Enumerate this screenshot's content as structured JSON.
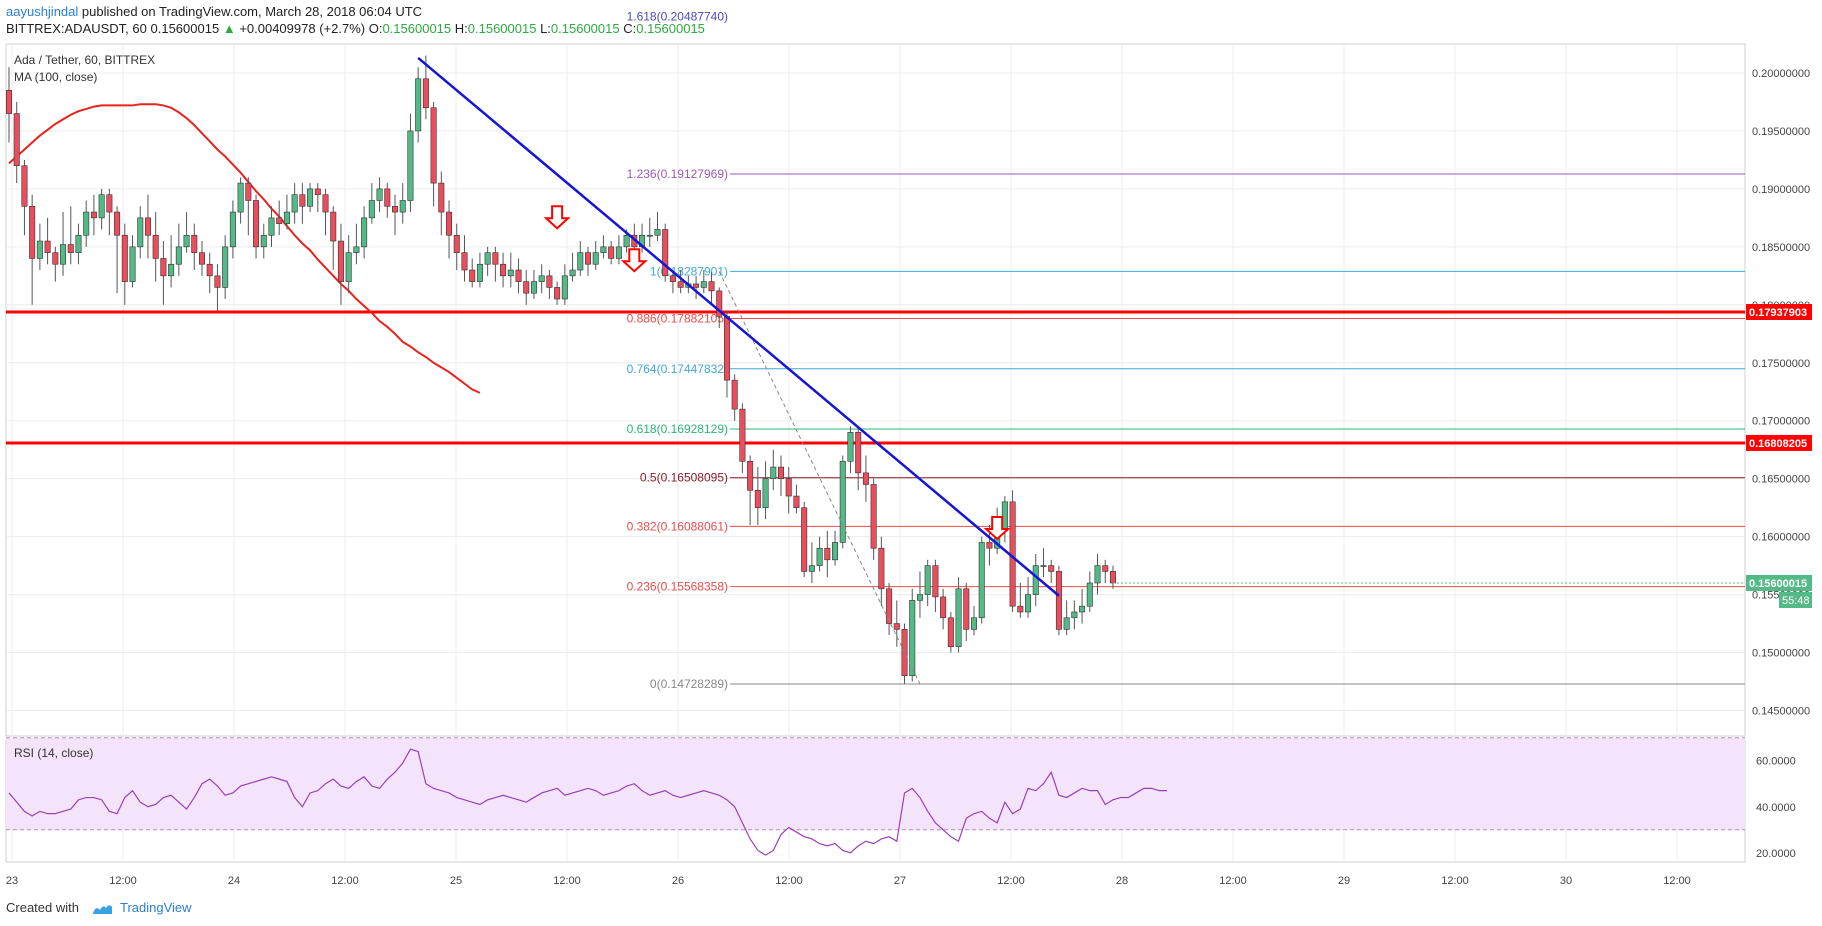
{
  "header": {
    "author": "aayushjindal",
    "published_text": "published on TradingView.com, March 28, 2018 06:04 UTC"
  },
  "ohlc": {
    "symbol": "BITTREX:ADAUSDT, 60",
    "price": "0.15600015",
    "change_arrow": "▲",
    "change": "+0.00409978 (+2.7%)",
    "o_label": "O:",
    "o": "0.15600015",
    "h_label": "H:",
    "h": "0.15600015",
    "l_label": "L:",
    "l": "0.15600015",
    "c_label": "C:",
    "c": "0.15600015"
  },
  "footer": {
    "created_with": "Created with",
    "brand": "TradingView"
  },
  "colors": {
    "up": "#53b987",
    "down": "#eb4d5c",
    "ma": "#e8231d",
    "trendline": "#1515d6",
    "resistance": "#ff0000",
    "rsi_line": "#9b3fb6",
    "rsi_band": "#f3e4fb",
    "grid": "#ececec",
    "last_price_bg": "#53b987"
  },
  "chart_data": {
    "type": "candlestick",
    "title": "Ada / Tether, 60, BITTREX",
    "indicator_label": "MA (100, close)",
    "rsi_label": "RSI (14, close)",
    "price_ticks": [
      "0.20000000",
      "0.19500000",
      "0.19000000",
      "0.18500000",
      "0.18000000",
      "0.17500000",
      "0.17000000",
      "0.16500000",
      "0.16000000",
      "0.15500000",
      "0.15000000",
      "0.14500000"
    ],
    "ylim": [
      0.1428,
      0.2025
    ],
    "rsi_ticks": [
      "60.0000",
      "40.0000",
      "20.0000"
    ],
    "rsi_lim": [
      16,
      69
    ],
    "rsi_band": [
      30,
      70
    ],
    "time_labels": [
      "23",
      "12:00",
      "24",
      "12:00",
      "25",
      "12:00",
      "26",
      "12:00",
      "27",
      "12:00",
      "28",
      "12:00",
      "29",
      "12:00",
      "30",
      "12:00"
    ],
    "last_price": "0.15600015",
    "countdown": "55:48",
    "horizontal_levels": [
      {
        "label": "0.17937903",
        "value": 0.17937903
      },
      {
        "label": "0.16808205",
        "value": 0.16808205
      }
    ],
    "fib_levels": [
      {
        "label": "1.618(0.20487740)",
        "value": 0.2048774,
        "color": "#4a4ab8"
      },
      {
        "label": "1.236(0.19127969)",
        "value": 0.19127969,
        "color": "#9b59b6"
      },
      {
        "label": "1(0.18287901)",
        "value": 0.18287901,
        "color": "#3fa9d6"
      },
      {
        "label": "0.886(0.17882105)",
        "value": 0.17882105,
        "color": "#e84c4c"
      },
      {
        "label": "0.764(0.17447832)",
        "value": 0.17447832,
        "color": "#3fa9d6"
      },
      {
        "label": "0.618(0.16928129)",
        "value": 0.16928129,
        "color": "#2bb673"
      },
      {
        "label": "0.5(0.16508095)",
        "value": 0.16508095,
        "color": "#8a1c2a"
      },
      {
        "label": "0.382(0.16088061)",
        "value": 0.16088061,
        "color": "#e84c4c"
      },
      {
        "label": "0.236(0.15568358)",
        "value": 0.15568358,
        "color": "#e84c4c"
      },
      {
        "label": "0(0.14728289)",
        "value": 0.14728289,
        "color": "#888888"
      }
    ],
    "candles": [
      [
        0.1985,
        0.1965,
        0.2005,
        0.194
      ],
      [
        0.1965,
        0.192,
        0.1975,
        0.1905
      ],
      [
        0.192,
        0.1885,
        0.1925,
        0.186
      ],
      [
        0.1885,
        0.184,
        0.1895,
        0.18
      ],
      [
        0.184,
        0.1855,
        0.187,
        0.183
      ],
      [
        0.1855,
        0.1845,
        0.1875,
        0.1835
      ],
      [
        0.1845,
        0.1835,
        0.185,
        0.182
      ],
      [
        0.1835,
        0.1852,
        0.188,
        0.1825
      ],
      [
        0.1852,
        0.1845,
        0.1885,
        0.1835
      ],
      [
        0.1845,
        0.186,
        0.187,
        0.1835
      ],
      [
        0.186,
        0.188,
        0.189,
        0.185
      ],
      [
        0.188,
        0.1875,
        0.1895,
        0.186
      ],
      [
        0.1875,
        0.1895,
        0.19,
        0.1865
      ],
      [
        0.1895,
        0.188,
        0.19,
        0.186
      ],
      [
        0.188,
        0.186,
        0.1885,
        0.181
      ],
      [
        0.186,
        0.182,
        0.187,
        0.18
      ],
      [
        0.182,
        0.185,
        0.186,
        0.1815
      ],
      [
        0.185,
        0.1875,
        0.1885,
        0.184
      ],
      [
        0.1875,
        0.186,
        0.1895,
        0.184
      ],
      [
        0.186,
        0.184,
        0.188,
        0.182
      ],
      [
        0.184,
        0.1825,
        0.1855,
        0.18
      ],
      [
        0.1825,
        0.1835,
        0.186,
        0.1815
      ],
      [
        0.1835,
        0.185,
        0.187,
        0.1825
      ],
      [
        0.185,
        0.186,
        0.188,
        0.1845
      ],
      [
        0.186,
        0.1845,
        0.187,
        0.183
      ],
      [
        0.1845,
        0.1835,
        0.1855,
        0.1825
      ],
      [
        0.1835,
        0.1825,
        0.1845,
        0.181
      ],
      [
        0.1825,
        0.1815,
        0.1835,
        0.1795
      ],
      [
        0.1815,
        0.185,
        0.186,
        0.1805
      ],
      [
        0.185,
        0.188,
        0.189,
        0.184
      ],
      [
        0.188,
        0.1905,
        0.191,
        0.187
      ],
      [
        0.1905,
        0.189,
        0.191,
        0.186
      ],
      [
        0.189,
        0.185,
        0.1895,
        0.184
      ],
      [
        0.185,
        0.186,
        0.187,
        0.184
      ],
      [
        0.186,
        0.1875,
        0.1885,
        0.185
      ],
      [
        0.1875,
        0.187,
        0.189,
        0.186
      ],
      [
        0.187,
        0.188,
        0.1895,
        0.1865
      ],
      [
        0.188,
        0.1895,
        0.1905,
        0.187
      ],
      [
        0.1895,
        0.1885,
        0.1905,
        0.187
      ],
      [
        0.1885,
        0.19,
        0.1905,
        0.188
      ],
      [
        0.19,
        0.1895,
        0.1905,
        0.188
      ],
      [
        0.1895,
        0.188,
        0.19,
        0.186
      ],
      [
        0.188,
        0.1855,
        0.1885,
        0.183
      ],
      [
        0.1855,
        0.182,
        0.187,
        0.18
      ],
      [
        0.182,
        0.1845,
        0.186,
        0.181
      ],
      [
        0.1845,
        0.185,
        0.187,
        0.1835
      ],
      [
        0.185,
        0.1875,
        0.1885,
        0.184
      ],
      [
        0.1875,
        0.189,
        0.1905,
        0.187
      ],
      [
        0.189,
        0.19,
        0.191,
        0.188
      ],
      [
        0.19,
        0.1885,
        0.1905,
        0.1875
      ],
      [
        0.1885,
        0.188,
        0.1895,
        0.186
      ],
      [
        0.188,
        0.189,
        0.1905,
        0.187
      ],
      [
        0.189,
        0.195,
        0.1965,
        0.188
      ],
      [
        0.195,
        0.1995,
        0.2005,
        0.194
      ],
      [
        0.1995,
        0.197,
        0.2015,
        0.196
      ],
      [
        0.197,
        0.1905,
        0.1975,
        0.1885
      ],
      [
        0.1905,
        0.188,
        0.1915,
        0.186
      ],
      [
        0.188,
        0.186,
        0.189,
        0.184
      ],
      [
        0.186,
        0.1845,
        0.187,
        0.183
      ],
      [
        0.1845,
        0.183,
        0.186,
        0.182
      ],
      [
        0.183,
        0.182,
        0.184,
        0.1815
      ],
      [
        0.182,
        0.1835,
        0.1845,
        0.1815
      ],
      [
        0.1835,
        0.1845,
        0.185,
        0.1825
      ],
      [
        0.1845,
        0.1835,
        0.185,
        0.182
      ],
      [
        0.1835,
        0.1825,
        0.1845,
        0.1815
      ],
      [
        0.1825,
        0.183,
        0.1845,
        0.1815
      ],
      [
        0.183,
        0.182,
        0.184,
        0.181
      ],
      [
        0.182,
        0.181,
        0.183,
        0.18
      ],
      [
        0.181,
        0.182,
        0.183,
        0.1805
      ],
      [
        0.182,
        0.1825,
        0.1835,
        0.181
      ],
      [
        0.1825,
        0.1815,
        0.183,
        0.1805
      ],
      [
        0.1815,
        0.1805,
        0.182,
        0.18
      ],
      [
        0.1805,
        0.1825,
        0.1835,
        0.18
      ],
      [
        0.1825,
        0.183,
        0.1845,
        0.182
      ],
      [
        0.183,
        0.1845,
        0.1855,
        0.1825
      ],
      [
        0.1845,
        0.1835,
        0.185,
        0.1825
      ],
      [
        0.1835,
        0.1845,
        0.1855,
        0.183
      ],
      [
        0.1845,
        0.185,
        0.186,
        0.184
      ],
      [
        0.185,
        0.184,
        0.1855,
        0.1835
      ],
      [
        0.184,
        0.185,
        0.186,
        0.1835
      ],
      [
        0.185,
        0.186,
        0.1865,
        0.1845
      ],
      [
        0.186,
        0.185,
        0.187,
        0.184
      ],
      [
        0.185,
        0.186,
        0.187,
        0.1845
      ],
      [
        0.186,
        0.186,
        0.1875,
        0.185
      ],
      [
        0.186,
        0.1865,
        0.188,
        0.1855
      ],
      [
        0.1865,
        0.1825,
        0.187,
        0.182
      ],
      [
        0.1825,
        0.182,
        0.183,
        0.181
      ],
      [
        0.182,
        0.1815,
        0.183,
        0.181
      ],
      [
        0.1815,
        0.1818,
        0.1825,
        0.181
      ],
      [
        0.1818,
        0.1815,
        0.1825,
        0.1805
      ],
      [
        0.1815,
        0.182,
        0.183,
        0.181
      ],
      [
        0.182,
        0.1812,
        0.1828,
        0.18
      ],
      [
        0.1812,
        0.179,
        0.1815,
        0.178
      ],
      [
        0.179,
        0.1735,
        0.1795,
        0.172
      ],
      [
        0.1735,
        0.171,
        0.174,
        0.17
      ],
      [
        0.171,
        0.1665,
        0.1715,
        0.1655
      ],
      [
        0.1665,
        0.164,
        0.167,
        0.161
      ],
      [
        0.164,
        0.1625,
        0.166,
        0.161
      ],
      [
        0.1625,
        0.165,
        0.1665,
        0.1615
      ],
      [
        0.165,
        0.166,
        0.1675,
        0.164
      ],
      [
        0.166,
        0.165,
        0.167,
        0.1635
      ],
      [
        0.165,
        0.1635,
        0.166,
        0.162
      ],
      [
        0.1635,
        0.1625,
        0.1645,
        0.162
      ],
      [
        0.1625,
        0.157,
        0.163,
        0.1565
      ],
      [
        0.157,
        0.1575,
        0.1595,
        0.156
      ],
      [
        0.1575,
        0.159,
        0.16,
        0.157
      ],
      [
        0.159,
        0.158,
        0.1605,
        0.1565
      ],
      [
        0.158,
        0.1595,
        0.1605,
        0.1575
      ],
      [
        0.1595,
        0.1665,
        0.167,
        0.159
      ],
      [
        0.1665,
        0.169,
        0.1695,
        0.1655
      ],
      [
        0.169,
        0.1655,
        0.1695,
        0.164
      ],
      [
        0.1655,
        0.1645,
        0.167,
        0.163
      ],
      [
        0.1645,
        0.159,
        0.165,
        0.158
      ],
      [
        0.159,
        0.1555,
        0.16,
        0.154
      ],
      [
        0.1555,
        0.1525,
        0.156,
        0.1515
      ],
      [
        0.1525,
        0.152,
        0.1545,
        0.1505
      ],
      [
        0.152,
        0.148,
        0.1525,
        0.1473
      ],
      [
        0.148,
        0.1545,
        0.1555,
        0.1475
      ],
      [
        0.1545,
        0.155,
        0.157,
        0.153
      ],
      [
        0.155,
        0.1575,
        0.158,
        0.154
      ],
      [
        0.1575,
        0.1548,
        0.158,
        0.1535
      ],
      [
        0.1548,
        0.153,
        0.1555,
        0.152
      ],
      [
        0.153,
        0.1505,
        0.1535,
        0.15
      ],
      [
        0.1505,
        0.1555,
        0.1565,
        0.15
      ],
      [
        0.1555,
        0.152,
        0.156,
        0.151
      ],
      [
        0.152,
        0.153,
        0.154,
        0.1515
      ],
      [
        0.153,
        0.1595,
        0.16,
        0.1525
      ],
      [
        0.1595,
        0.159,
        0.161,
        0.1575
      ],
      [
        0.159,
        0.1605,
        0.1625,
        0.1585
      ],
      [
        0.1605,
        0.163,
        0.1635,
        0.1595
      ],
      [
        0.163,
        0.154,
        0.164,
        0.1535
      ],
      [
        0.154,
        0.1535,
        0.156,
        0.153
      ],
      [
        0.1535,
        0.155,
        0.1565,
        0.153
      ],
      [
        0.155,
        0.1575,
        0.1585,
        0.154
      ],
      [
        0.1575,
        0.1575,
        0.159,
        0.1565
      ],
      [
        0.1575,
        0.157,
        0.158,
        0.156
      ],
      [
        0.157,
        0.152,
        0.1575,
        0.1515
      ],
      [
        0.152,
        0.153,
        0.1545,
        0.1515
      ],
      [
        0.153,
        0.1535,
        0.1545,
        0.152
      ],
      [
        0.1535,
        0.154,
        0.1555,
        0.1525
      ],
      [
        0.154,
        0.156,
        0.157,
        0.1535
      ],
      [
        0.156,
        0.1575,
        0.1585,
        0.155
      ],
      [
        0.1575,
        0.157,
        0.158,
        0.156
      ],
      [
        0.157,
        0.156,
        0.1575,
        0.1555
      ]
    ],
    "ma_100": [
      0.1922,
      0.1928,
      0.1934,
      0.194,
      0.1946,
      0.1951,
      0.1956,
      0.196,
      0.1964,
      0.1967,
      0.1969,
      0.1971,
      0.1972,
      0.1972,
      0.1972,
      0.1972,
      0.1972,
      0.1973,
      0.1973,
      0.1973,
      0.1972,
      0.197,
      0.1966,
      0.1961,
      0.1955,
      0.1948,
      0.1941,
      0.1934,
      0.1928,
      0.1921,
      0.1914,
      0.1906,
      0.1898,
      0.1891,
      0.1883,
      0.1876,
      0.1868,
      0.186,
      0.1853,
      0.1847,
      0.1839,
      0.1832,
      0.1825,
      0.1818,
      0.1812,
      0.1805,
      0.1799,
      0.1793,
      0.1786,
      0.1781,
      0.1775,
      0.1768,
      0.1764,
      0.1759,
      0.1755,
      0.175,
      0.1746,
      0.1742,
      0.1737,
      0.1732,
      0.1727,
      0.1724
    ],
    "rsi": [
      46,
      42,
      38,
      36,
      38,
      37,
      37,
      38,
      39,
      43,
      44,
      44,
      43,
      38,
      37,
      44,
      47,
      42,
      40,
      41,
      44,
      45,
      42,
      39,
      44,
      50,
      52,
      49,
      45,
      46,
      49,
      50,
      51,
      52,
      53,
      52,
      51,
      44,
      40,
      46,
      47,
      50,
      52,
      49,
      48,
      51,
      53,
      49,
      48,
      52,
      55,
      59,
      65,
      64,
      50,
      48,
      47,
      46,
      44,
      43,
      42,
      41,
      43,
      44,
      45,
      44,
      43,
      42,
      44,
      46,
      47,
      48,
      45,
      46,
      47,
      48,
      47,
      45,
      46,
      47,
      49,
      50,
      47,
      45,
      46,
      47,
      45,
      44,
      45,
      46,
      47,
      46,
      45,
      43,
      40,
      33,
      26,
      21,
      19,
      21,
      28,
      31,
      29,
      27,
      26,
      24,
      23,
      24,
      21,
      20,
      23,
      25,
      24,
      26,
      27,
      25,
      46,
      48,
      44,
      38,
      33,
      30,
      27,
      25,
      35,
      37,
      38,
      35,
      33,
      42,
      37,
      39,
      48,
      47,
      50,
      55,
      45,
      44,
      46,
      48,
      47,
      47,
      41,
      43,
      44,
      44,
      46,
      48,
      48,
      47,
      47
    ]
  }
}
